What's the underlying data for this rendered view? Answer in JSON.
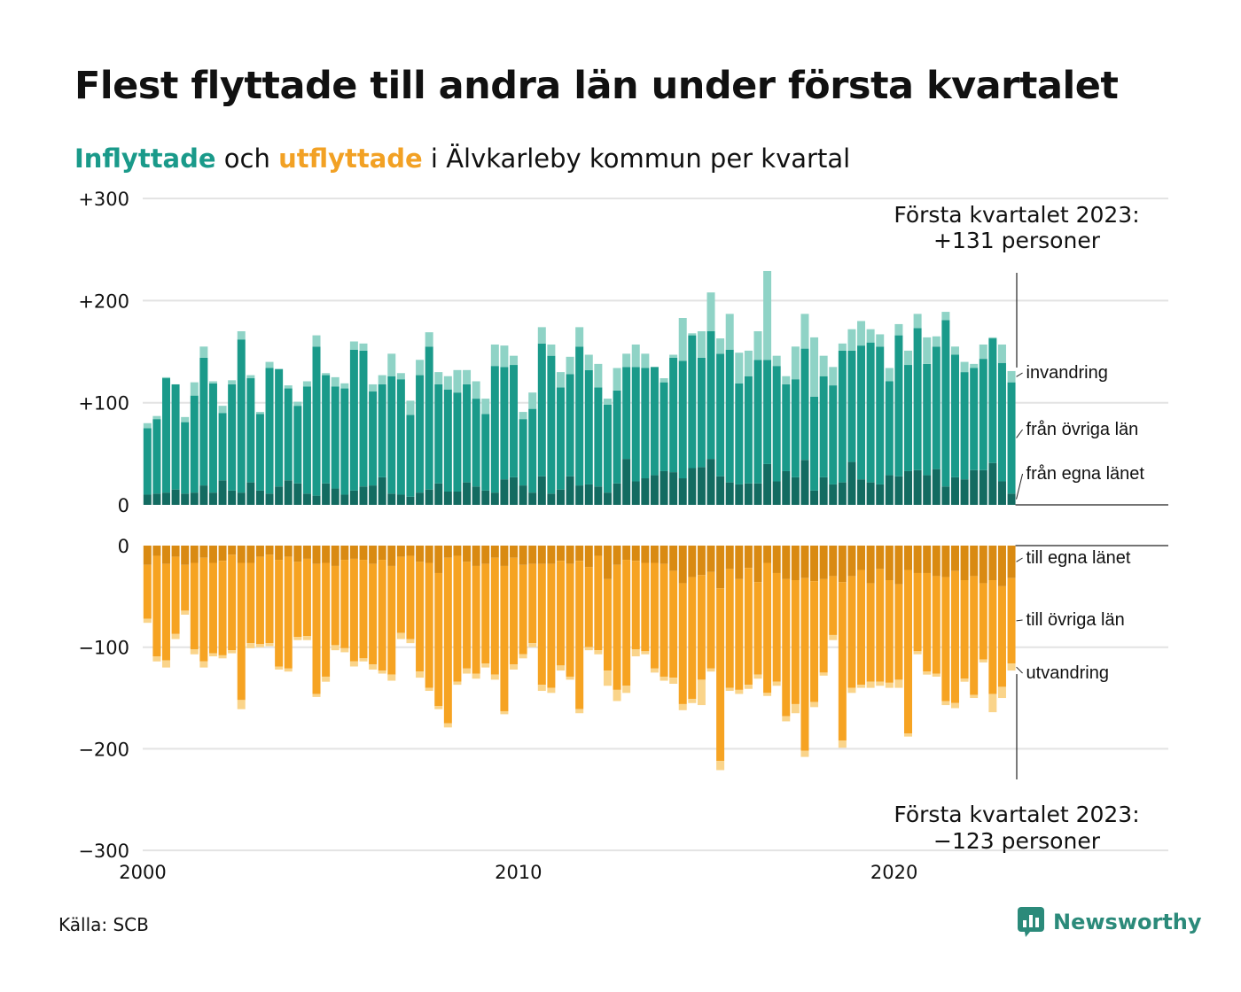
{
  "title": "Flest flyttade till andra län under första kvartalet",
  "subtitle": {
    "in_word": "Inflyttade",
    "mid": " och ",
    "out_word": "utflyttade",
    "rest": " i Älvkarleby kommun per kvartal"
  },
  "colors": {
    "in_egna": "#136b61",
    "in_ovriga": "#1a9a8a",
    "in_invandring": "#8fd3c6",
    "out_egna": "#d98a12",
    "out_ovriga": "#f6a322",
    "out_utvandring": "#fad48a",
    "grid": "#e3e3e3",
    "accent_in": "#1a9a8a",
    "accent_out": "#f2a124"
  },
  "source": "Källa: SCB",
  "logo": {
    "text": "Newsworthy",
    "icon": "newsworthy-logo-icon"
  },
  "chart_data": {
    "type": "bar",
    "stacked": true,
    "frequency": "quarterly",
    "start": "2000 Q1",
    "end": "2023 Q1",
    "top_panel": {
      "ylim": [
        0,
        300
      ],
      "ticks": [
        0,
        100,
        200,
        300
      ],
      "tick_labels": [
        "0",
        "+100",
        "+200",
        "+300"
      ],
      "series_labels": [
        "från egna länet",
        "från övriga län",
        "invandring"
      ],
      "annotation": [
        "Första kvartalet 2023:",
        "+131 personer"
      ]
    },
    "bottom_panel": {
      "ylim": [
        -300,
        0
      ],
      "ticks": [
        0,
        -100,
        -200,
        -300
      ],
      "tick_labels": [
        "0",
        "−100",
        "−200",
        "−300"
      ],
      "series_labels": [
        "till egna länet",
        "till övriga län",
        "utvandring"
      ],
      "annotation": [
        "Första kvartalet 2023:",
        "−123 personer"
      ]
    },
    "x_ticks": [
      2000,
      2010,
      2020
    ],
    "x_tick_labels": [
      "2000",
      "2010",
      "2020"
    ],
    "xlim": [
      2000,
      2027.3
    ],
    "in_total": [
      80,
      87,
      125,
      118,
      86,
      120,
      155,
      121,
      97,
      122,
      170,
      127,
      91,
      140,
      133,
      117,
      101,
      121,
      166,
      129,
      125,
      119,
      160,
      158,
      118,
      127,
      148,
      129,
      102,
      142,
      169,
      130,
      126,
      132,
      132,
      121,
      104,
      157,
      156,
      146,
      91,
      110,
      174,
      157,
      130,
      145,
      174,
      147,
      138,
      104,
      134,
      148,
      157,
      148,
      135,
      124,
      147,
      183,
      168,
      170,
      208,
      163,
      187,
      149,
      151,
      170,
      229,
      146,
      126,
      155,
      187,
      164,
      146,
      135,
      158,
      172,
      180,
      172,
      167,
      134,
      177,
      151,
      187,
      164,
      165,
      189,
      155,
      140,
      138,
      157,
      164,
      157,
      131
    ],
    "in_egna": [
      10,
      11,
      12,
      15,
      11,
      12,
      19,
      12,
      24,
      14,
      12,
      22,
      14,
      11,
      18,
      24,
      21,
      11,
      9,
      21,
      16,
      10,
      14,
      18,
      19,
      27,
      11,
      10,
      8,
      12,
      15,
      21,
      13,
      13,
      22,
      18,
      14,
      12,
      25,
      27,
      19,
      12,
      28,
      11,
      15,
      28,
      19,
      20,
      18,
      12,
      21,
      45,
      23,
      26,
      29,
      33,
      32,
      26,
      36,
      37,
      45,
      28,
      22,
      20,
      21,
      21,
      40,
      23,
      33,
      27,
      44,
      14,
      27,
      20,
      22,
      42,
      25,
      22,
      20,
      29,
      28,
      33,
      34,
      29,
      35,
      18,
      27,
      25,
      34,
      34,
      41,
      23,
      11
    ],
    "in_ovriga": [
      65,
      73,
      112,
      103,
      70,
      95,
      125,
      107,
      66,
      104,
      150,
      102,
      75,
      123,
      115,
      90,
      76,
      105,
      146,
      106,
      100,
      104,
      138,
      133,
      92,
      91,
      115,
      113,
      80,
      115,
      140,
      97,
      100,
      97,
      96,
      86,
      75,
      124,
      110,
      110,
      65,
      82,
      130,
      135,
      100,
      100,
      136,
      112,
      97,
      86,
      91,
      90,
      112,
      108,
      106,
      87,
      112,
      115,
      130,
      107,
      125,
      120,
      130,
      99,
      105,
      121,
      102,
      113,
      85,
      96,
      109,
      92,
      99,
      97,
      129,
      109,
      131,
      137,
      135,
      92,
      138,
      104,
      139,
      109,
      120,
      163,
      120,
      105,
      100,
      109,
      122,
      116,
      109
    ],
    "out_egna": [
      -19,
      -10,
      -18,
      -11,
      -19,
      -17,
      -12,
      -17,
      -15,
      -9,
      -17,
      -17,
      -11,
      -9,
      -14,
      -11,
      -16,
      -13,
      -18,
      -17,
      -20,
      -14,
      -13,
      -14,
      -18,
      -14,
      -20,
      -11,
      -10,
      -16,
      -17,
      -27,
      -12,
      -10,
      -16,
      -20,
      -18,
      -12,
      -20,
      -12,
      -19,
      -18,
      -18,
      -18,
      -15,
      -18,
      -15,
      -21,
      -10,
      -33,
      -19,
      -14,
      -15,
      -17,
      -17,
      -18,
      -25,
      -37,
      -31,
      -29,
      -26,
      -42,
      -23,
      -33,
      -22,
      -36,
      -17,
      -27,
      -33,
      -34,
      -32,
      -35,
      -33,
      -30,
      -36,
      -30,
      -24,
      -37,
      -23,
      -34,
      -38,
      -24,
      -27,
      -27,
      -30,
      -31,
      -25,
      -34,
      -30,
      -37,
      -34,
      -40,
      -32
    ],
    "out_ovriga": [
      -53,
      -99,
      -95,
      -76,
      -45,
      -85,
      -102,
      -89,
      -93,
      -94,
      -135,
      -79,
      -86,
      -87,
      -105,
      -110,
      -74,
      -76,
      -128,
      -112,
      -78,
      -87,
      -101,
      -97,
      -99,
      -109,
      -107,
      -75,
      -82,
      -108,
      -123,
      -131,
      -163,
      -124,
      -105,
      -106,
      -98,
      -115,
      -143,
      -105,
      -88,
      -78,
      -119,
      -122,
      -103,
      -111,
      -146,
      -79,
      -93,
      -90,
      -123,
      -124,
      -87,
      -87,
      -104,
      -111,
      -105,
      -119,
      -120,
      -103,
      -95,
      -170,
      -117,
      -109,
      -115,
      -91,
      -128,
      -107,
      -135,
      -122,
      -170,
      -119,
      -92,
      -58,
      -156,
      -110,
      -113,
      -97,
      -111,
      -101,
      -94,
      -161,
      -77,
      -97,
      -96,
      -122,
      -130,
      -97,
      -117,
      -75,
      -112,
      -99,
      -84
    ],
    "out_utvandring": [
      -4,
      -5,
      -7,
      -5,
      -4,
      -5,
      -6,
      -3,
      -3,
      -3,
      -9,
      -5,
      -3,
      -3,
      -3,
      -3,
      -3,
      -4,
      -3,
      -5,
      -5,
      -4,
      -5,
      -3,
      -5,
      -3,
      -6,
      -6,
      -4,
      -6,
      -3,
      -3,
      -4,
      -3,
      -5,
      -5,
      -4,
      -5,
      -3,
      -5,
      -4,
      -4,
      -6,
      -5,
      -5,
      -3,
      -4,
      -3,
      -4,
      -15,
      -11,
      -7,
      -7,
      -3,
      -4,
      -4,
      -6,
      -6,
      -4,
      -25,
      -3,
      -9,
      -3,
      -4,
      -4,
      -4,
      -3,
      -4,
      -5,
      -9,
      -6,
      -5,
      -3,
      -5,
      -7,
      -5,
      -3,
      -6,
      -4,
      -5,
      -8,
      -3,
      -3,
      -3,
      -3,
      -4,
      -5,
      -3,
      -3,
      -3,
      -18,
      -11,
      -7
    ]
  }
}
